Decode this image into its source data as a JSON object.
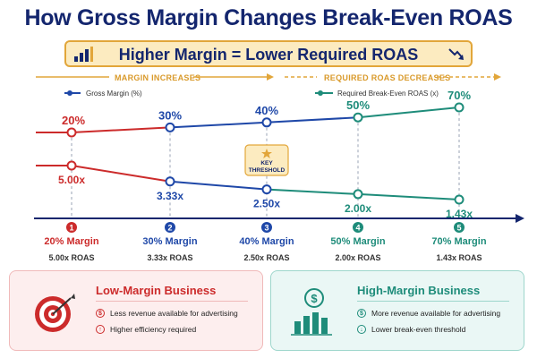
{
  "title": "How Gross Margin Changes Break-Even ROAS",
  "banner": {
    "text": "Higher Margin = Lower Required ROAS"
  },
  "arrows": {
    "left": "MARGIN INCREASES",
    "right": "REQUIRED ROAS DECREASES"
  },
  "legend": {
    "margin": "Gross Margin (%)",
    "roas": "Required Break-Even ROAS (x)"
  },
  "key_threshold": {
    "line1": "KEY",
    "line2": "THRESHOLD"
  },
  "colors": {
    "red": "#cc2b2b",
    "blue": "#1f48a8",
    "teal": "#1e8c7a",
    "navy": "#14266e",
    "gold": "#e2a63a"
  },
  "chart_data": {
    "type": "line",
    "x": [
      1,
      2,
      3,
      4,
      5
    ],
    "series": [
      {
        "name": "Gross Margin (%)",
        "values": [
          20,
          30,
          40,
          50,
          70
        ],
        "labels": [
          "20%",
          "30%",
          "40%",
          "50%",
          "70%"
        ]
      },
      {
        "name": "Required Break-Even ROAS (x)",
        "values": [
          5.0,
          3.33,
          2.5,
          2.0,
          1.43
        ],
        "labels": [
          "5.00x",
          "3.33x",
          "2.50x",
          "2.00x",
          "1.43x"
        ]
      }
    ],
    "xlabel": "",
    "ylabel": ""
  },
  "steps": [
    {
      "num": "1",
      "margin": "20% Margin",
      "roas": "5.00x ROAS"
    },
    {
      "num": "2",
      "margin": "30% Margin",
      "roas": "3.33x ROAS"
    },
    {
      "num": "3",
      "margin": "40% Margin",
      "roas": "2.50x ROAS"
    },
    {
      "num": "4",
      "margin": "50% Margin",
      "roas": "2.00x ROAS"
    },
    {
      "num": "5",
      "margin": "70% Margin",
      "roas": "1.43x ROAS"
    }
  ],
  "low_card": {
    "title": "Low-Margin Business",
    "items": [
      "Less revenue available for advertising",
      "Higher efficiency required"
    ],
    "icon": "target-icon"
  },
  "high_card": {
    "title": "High-Margin Business",
    "items": [
      "More revenue available for advertising",
      "Lower break-even threshold"
    ],
    "icon": "money-growth-icon"
  }
}
